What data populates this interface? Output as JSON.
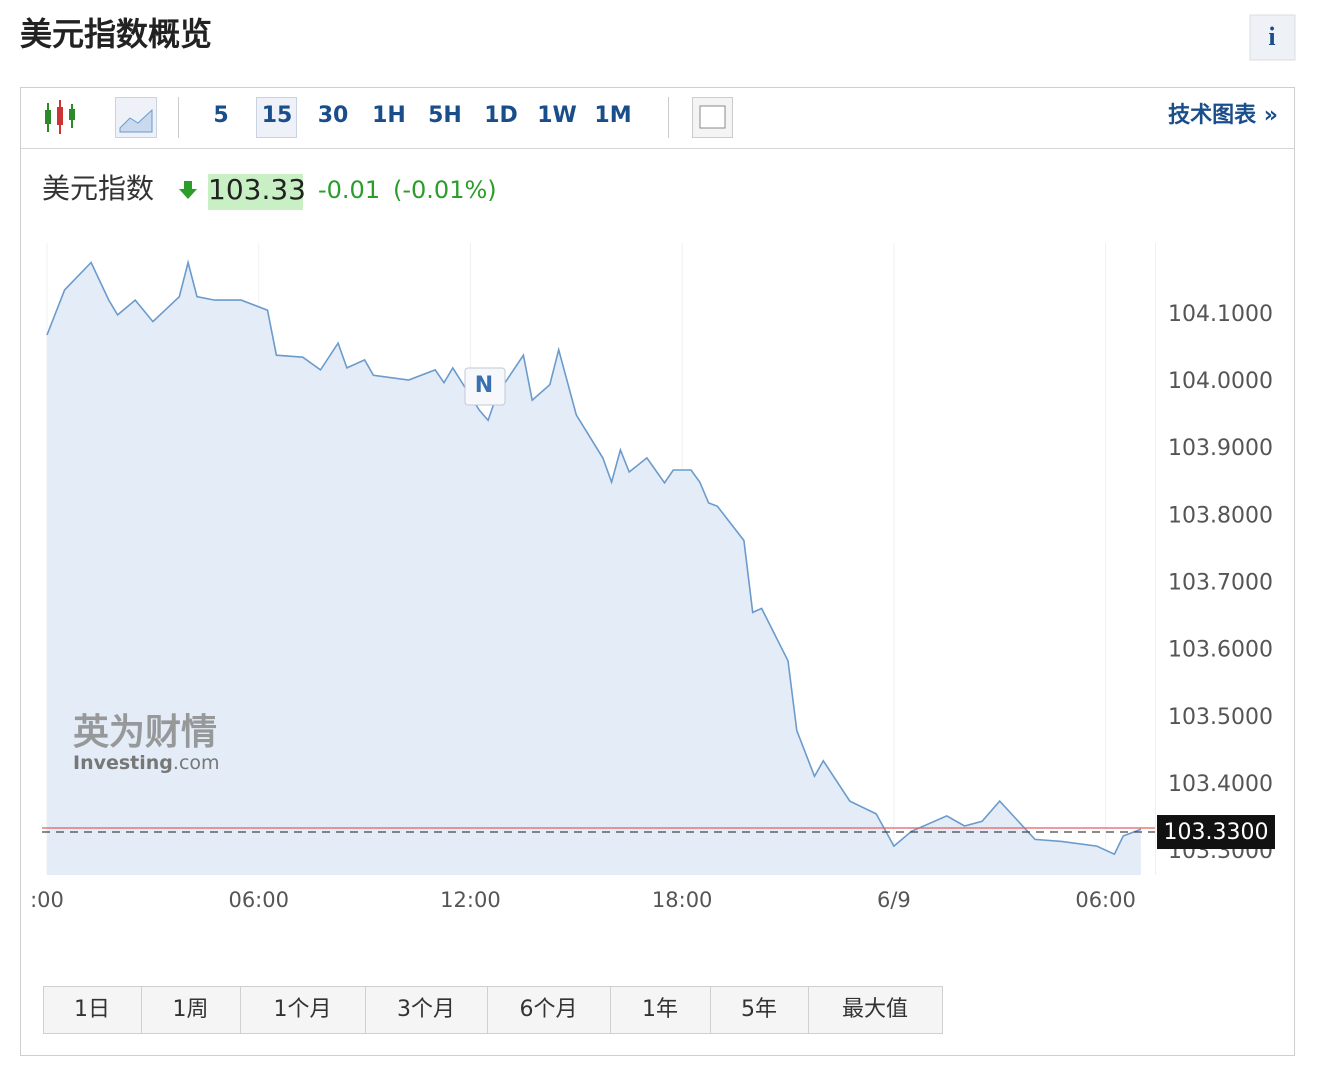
{
  "header": {
    "title": "美元指数概览",
    "info": "i"
  },
  "toolbar": {
    "intervals": [
      "5",
      "15",
      "30",
      "1H",
      "5H",
      "1D",
      "1W",
      "1M"
    ],
    "selected_interval": "15",
    "link": "技术图表 »"
  },
  "quote": {
    "name": "美元指数",
    "price": "103.33",
    "change": "-0.01",
    "change_pct": "(-0.01%)"
  },
  "watermark": {
    "cn": "英为财情",
    "en": "Investing",
    "suffix": ".com"
  },
  "chart_data": {
    "type": "line",
    "color": "#6b9bcc",
    "fill_color": "#e4edf7",
    "x": [
      0,
      0.5,
      1.25,
      1.75,
      2,
      2.5,
      3,
      3.75,
      4,
      4.25,
      4.75,
      5.5,
      6.25,
      6.5,
      7.25,
      7.75,
      8.25,
      8.5,
      9,
      9.25,
      10.25,
      11,
      11.25,
      11.5,
      12.25,
      12.5,
      12.75,
      13.5,
      13.75,
      14.25,
      14.5,
      15,
      15.75,
      16,
      16.25,
      16.5,
      17,
      17.5,
      17.75,
      18.25,
      18.5,
      18.75,
      19,
      19.75,
      20,
      20.25,
      21,
      21.25,
      21.75,
      22,
      22.75,
      23.5,
      24,
      24.5,
      25.5,
      26,
      26.5,
      27,
      28,
      28.75,
      29.75,
      30.25,
      30.5,
      31
    ],
    "values": [
      104.07,
      104.137,
      104.178,
      104.122,
      104.1,
      104.122,
      104.09,
      104.127,
      104.178,
      104.127,
      104.122,
      104.122,
      104.107,
      104.04,
      104.037,
      104.018,
      104.058,
      104.021,
      104.033,
      104.01,
      104.003,
      104.018,
      103.999,
      104.021,
      103.958,
      103.943,
      103.981,
      104.04,
      103.973,
      103.996,
      104.048,
      103.951,
      103.887,
      103.851,
      103.899,
      103.866,
      103.887,
      103.85,
      103.869,
      103.869,
      103.851,
      103.82,
      103.815,
      103.764,
      103.657,
      103.663,
      103.585,
      103.481,
      103.413,
      103.436,
      103.376,
      103.357,
      103.309,
      103.331,
      103.354,
      103.339,
      103.346,
      103.376,
      103.319,
      103.316,
      103.309,
      103.297,
      103.324,
      103.334
    ],
    "xlim": [
      0,
      31.4
    ],
    "xticks": [
      {
        "value": 0,
        "label": ":00"
      },
      {
        "value": 6,
        "label": "06:00"
      },
      {
        "value": 12,
        "label": "12:00"
      },
      {
        "value": 18,
        "label": "18:00"
      },
      {
        "value": 24,
        "label": "6/9"
      },
      {
        "value": 30,
        "label": "06:00"
      }
    ],
    "ylim": [
      103.266,
      104.207
    ],
    "yticks": [
      {
        "value": 103.3,
        "label": "103.3000"
      },
      {
        "value": 103.4,
        "label": "103.4000"
      },
      {
        "value": 103.5,
        "label": "103.5000"
      },
      {
        "value": 103.6,
        "label": "103.6000"
      },
      {
        "value": 103.7,
        "label": "103.7000"
      },
      {
        "value": 103.8,
        "label": "103.8000"
      },
      {
        "value": 103.9,
        "label": "103.9000"
      },
      {
        "value": 104.0,
        "label": "104.0000"
      },
      {
        "value": 104.1,
        "label": "104.1000"
      }
    ],
    "last_value": {
      "value": 103.33,
      "label": "103.3300"
    },
    "annotation": "N",
    "grid": true
  },
  "ranges": [
    "1日",
    "1周",
    "1个月",
    "3个月",
    "6个月",
    "1年",
    "5年",
    "最大值"
  ]
}
